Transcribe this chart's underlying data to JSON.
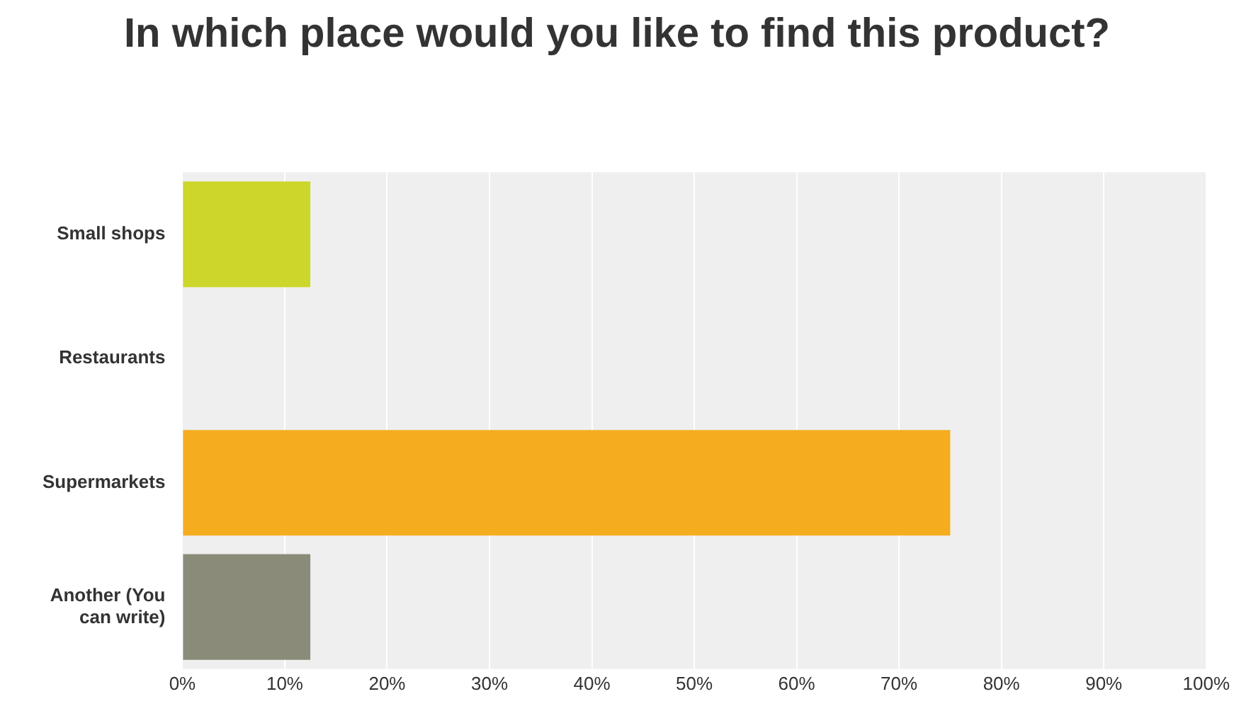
{
  "chart_data": {
    "type": "bar",
    "orientation": "horizontal",
    "title": "In which place would you like to find this product?",
    "categories": [
      "Small shops",
      "Restaurants",
      "Supermarkets",
      "Another (You can write)"
    ],
    "values": [
      12.5,
      0,
      75,
      12.5
    ],
    "colors": [
      "#cdd62a",
      "#f5ad1f",
      "#f5ad1f",
      "#8b8b7a"
    ],
    "xlim": [
      0,
      100
    ],
    "xticks": [
      {
        "value": 0,
        "label": "0%"
      },
      {
        "value": 10,
        "label": "10%"
      },
      {
        "value": 20,
        "label": "20%"
      },
      {
        "value": 30,
        "label": "30%"
      },
      {
        "value": 40,
        "label": "40%"
      },
      {
        "value": 50,
        "label": "50%"
      },
      {
        "value": 60,
        "label": "60%"
      },
      {
        "value": 70,
        "label": "70%"
      },
      {
        "value": 80,
        "label": "80%"
      },
      {
        "value": 90,
        "label": "90%"
      },
      {
        "value": 100,
        "label": "100%"
      }
    ],
    "grid": "x",
    "legend": false
  }
}
